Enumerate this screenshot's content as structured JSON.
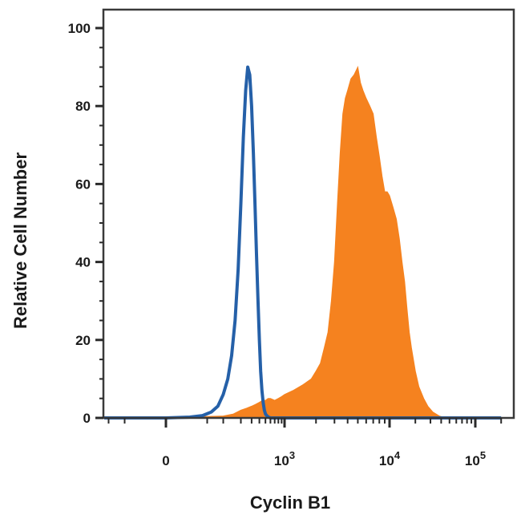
{
  "chart_data": {
    "type": "area",
    "xlabel": "Cyclin B1",
    "ylabel": "Relative Cell Number",
    "x_scale": "biexponential",
    "ylim": [
      0,
      100
    ],
    "y_ticks": [
      "0",
      "20",
      "40",
      "60",
      "80",
      "100"
    ],
    "x_ticks": [
      {
        "value": 0,
        "label": "0"
      },
      {
        "value": 1000,
        "base": "10",
        "exp": "3"
      },
      {
        "value": 10000,
        "base": "10",
        "exp": "4"
      },
      {
        "value": 100000,
        "base": "10",
        "exp": "5"
      }
    ],
    "series": [
      {
        "style": "filled",
        "color": "#f5821f",
        "x": [
          -1200,
          -300,
          0,
          100,
          150,
          200,
          250,
          300,
          350,
          400,
          450,
          500,
          550,
          600,
          700,
          800,
          900,
          1000,
          1200,
          1500,
          1800,
          2000,
          2200,
          2400,
          2600,
          2800,
          3000,
          3200,
          3400,
          3600,
          3800,
          4000,
          4300,
          4600,
          5000,
          5300,
          5600,
          6000,
          6500,
          7000,
          7500,
          8000,
          8500,
          9000,
          9500,
          10000,
          11000,
          12000,
          13000,
          14000,
          15000,
          16000,
          17000,
          18000,
          20000,
          22000,
          25000,
          28000,
          32000,
          38000,
          45000,
          60000,
          200000
        ],
        "y": [
          0,
          0,
          0,
          0.5,
          1,
          2,
          2.5,
          3,
          3.5,
          4,
          4.5,
          4.5,
          5,
          5,
          4.5,
          5,
          5.5,
          6,
          7,
          8.5,
          10,
          12,
          14,
          18,
          22,
          30,
          40,
          55,
          68,
          78,
          82,
          84,
          87,
          88,
          90,
          86,
          84,
          82,
          80,
          78,
          72,
          67,
          62,
          58,
          58,
          57,
          54,
          51,
          46,
          40,
          35,
          28,
          22,
          18,
          12,
          8,
          5,
          3,
          1.5,
          0.5,
          0,
          0,
          0
        ]
      },
      {
        "style": "line",
        "color": "#2560a8",
        "x": [
          -1200,
          0,
          20,
          40,
          60,
          80,
          100,
          120,
          140,
          160,
          180,
          200,
          220,
          240,
          260,
          280,
          300,
          320,
          340,
          360,
          380,
          400,
          420,
          440,
          460,
          480,
          500,
          530,
          560,
          600,
          700,
          200000
        ],
        "y": [
          0,
          0,
          0.2,
          0.6,
          1.5,
          3,
          6,
          10,
          16,
          25,
          38,
          55,
          72,
          84,
          90,
          88,
          80,
          68,
          55,
          42,
          30,
          20,
          12,
          7,
          4,
          2,
          1,
          0.5,
          0.2,
          0,
          0,
          0
        ]
      }
    ],
    "grid": false,
    "legend": "none"
  }
}
